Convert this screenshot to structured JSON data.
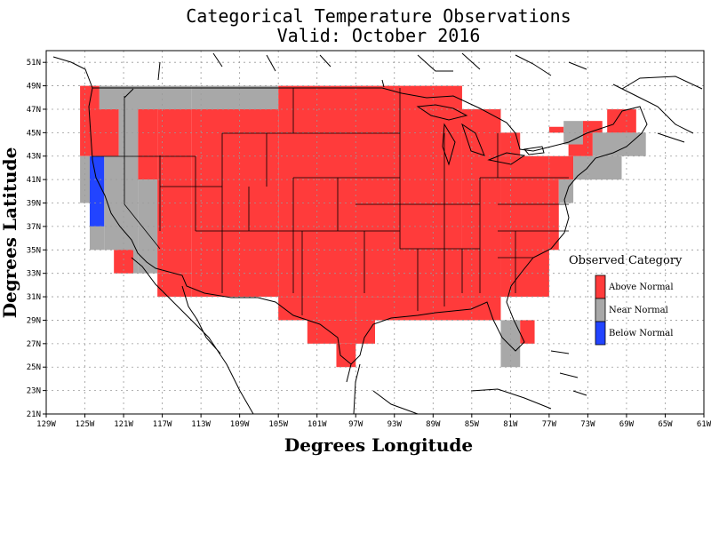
{
  "title_line1": "Categorical Temperature Observations",
  "title_line2": "Valid: October 2016",
  "x_axis_label": "Degrees Longitude",
  "y_axis_label": "Degrees Latitude",
  "lon_ticks": [
    "129W",
    "125W",
    "121W",
    "117W",
    "113W",
    "109W",
    "105W",
    "101W",
    "97W",
    "93W",
    "89W",
    "85W",
    "81W",
    "77W",
    "73W",
    "69W",
    "65W",
    "61W"
  ],
  "lat_ticks": [
    "21N",
    "23N",
    "25N",
    "27N",
    "29N",
    "31N",
    "33N",
    "35N",
    "37N",
    "39N",
    "41N",
    "43N",
    "45N",
    "47N",
    "49N",
    "51N"
  ],
  "legend": {
    "title": "Observed Category",
    "items": [
      {
        "label": "Above Normal",
        "color": "#ff3b3b"
      },
      {
        "label": "Near Normal",
        "color": "#a8a8a8"
      },
      {
        "label": "Below Normal",
        "color": "#2244ff"
      }
    ]
  },
  "colors": {
    "above": "#ff3b3b",
    "near": "#a8a8a8",
    "below": "#2244ff"
  },
  "cells": [
    {
      "lon": [
        -125.5,
        -123.5
      ],
      "lat": [
        47,
        49
      ],
      "cat": "above"
    },
    {
      "lon": [
        -125.5,
        -121.5
      ],
      "lat": [
        43,
        47
      ],
      "cat": "above"
    },
    {
      "lon": [
        -125.5,
        -124.5
      ],
      "lat": [
        39,
        43
      ],
      "cat": "near"
    },
    {
      "lon": [
        -124.5,
        -123
      ],
      "lat": [
        37,
        43
      ],
      "cat": "below"
    },
    {
      "lon": [
        -124.5,
        -123
      ],
      "lat": [
        35,
        37
      ],
      "cat": "near"
    },
    {
      "lon": [
        -123,
        -121
      ],
      "lat": [
        35,
        43
      ],
      "cat": "near"
    },
    {
      "lon": [
        -123.5,
        -114
      ],
      "lat": [
        47,
        49
      ],
      "cat": "near"
    },
    {
      "lon": [
        -121.5,
        -119.5
      ],
      "lat": [
        33,
        47
      ],
      "cat": "near"
    },
    {
      "lon": [
        -119.5,
        -117.5
      ],
      "lat": [
        41,
        47
      ],
      "cat": "above"
    },
    {
      "lon": [
        -119.5,
        -117.5
      ],
      "lat": [
        33,
        41
      ],
      "cat": "near"
    },
    {
      "lon": [
        -122,
        -120
      ],
      "lat": [
        33,
        35
      ],
      "cat": "above"
    },
    {
      "lon": [
        -117.5,
        -114
      ],
      "lat": [
        33,
        47
      ],
      "cat": "above"
    },
    {
      "lon": [
        -117.5,
        -114
      ],
      "lat": [
        31,
        33
      ],
      "cat": "above"
    },
    {
      "lon": [
        -114,
        -105
      ],
      "lat": [
        47,
        49
      ],
      "cat": "near"
    },
    {
      "lon": [
        -114,
        -105
      ],
      "lat": [
        31,
        47
      ],
      "cat": "above"
    },
    {
      "lon": [
        -105,
        -86
      ],
      "lat": [
        31,
        49
      ],
      "cat": "above"
    },
    {
      "lon": [
        -105,
        -97
      ],
      "lat": [
        29,
        31
      ],
      "cat": "above"
    },
    {
      "lon": [
        -97,
        -82
      ],
      "lat": [
        29,
        31
      ],
      "cat": "above"
    },
    {
      "lon": [
        -102,
        -95
      ],
      "lat": [
        27,
        29
      ],
      "cat": "above"
    },
    {
      "lon": [
        -99,
        -97
      ],
      "lat": [
        25,
        27
      ],
      "cat": "above"
    },
    {
      "lon": [
        -86,
        -82
      ],
      "lat": [
        31,
        47
      ],
      "cat": "above"
    },
    {
      "lon": [
        -82,
        -80
      ],
      "lat": [
        43,
        45
      ],
      "cat": "above"
    },
    {
      "lon": [
        -82,
        -77
      ],
      "lat": [
        31,
        43
      ],
      "cat": "above"
    },
    {
      "lon": [
        -77,
        -76
      ],
      "lat": [
        35,
        41
      ],
      "cat": "above"
    },
    {
      "lon": [
        -77,
        -74.5
      ],
      "lat": [
        41,
        43
      ],
      "cat": "above"
    },
    {
      "lon": [
        -76,
        -74.5
      ],
      "lat": [
        39,
        41
      ],
      "cat": "near"
    },
    {
      "lon": [
        -74.5,
        -73
      ],
      "lat": [
        41,
        43
      ],
      "cat": "near"
    },
    {
      "lon": [
        -73,
        -69.5
      ],
      "lat": [
        41,
        43
      ],
      "cat": "near"
    },
    {
      "lon": [
        -75,
        -72.5
      ],
      "lat": [
        43,
        45
      ],
      "cat": "above"
    },
    {
      "lon": [
        -72.5,
        -71
      ],
      "lat": [
        43,
        45
      ],
      "cat": "near"
    },
    {
      "lon": [
        -77,
        -75.5
      ],
      "lat": [
        45,
        45.5
      ],
      "cat": "above"
    },
    {
      "lon": [
        -75.5,
        -73.5
      ],
      "lat": [
        44,
        46
      ],
      "cat": "near"
    },
    {
      "lon": [
        -73.5,
        -71.5
      ],
      "lat": [
        45,
        46
      ],
      "cat": "above"
    },
    {
      "lon": [
        -71.5,
        -67
      ],
      "lat": [
        43,
        45
      ],
      "cat": "near"
    },
    {
      "lon": [
        -71,
        -68
      ],
      "lat": [
        45,
        47
      ],
      "cat": "above"
    },
    {
      "lon": [
        -82,
        -80
      ],
      "lat": [
        25,
        29
      ],
      "cat": "near"
    },
    {
      "lon": [
        -80,
        -78.5
      ],
      "lat": [
        27,
        29
      ],
      "cat": "above"
    }
  ]
}
